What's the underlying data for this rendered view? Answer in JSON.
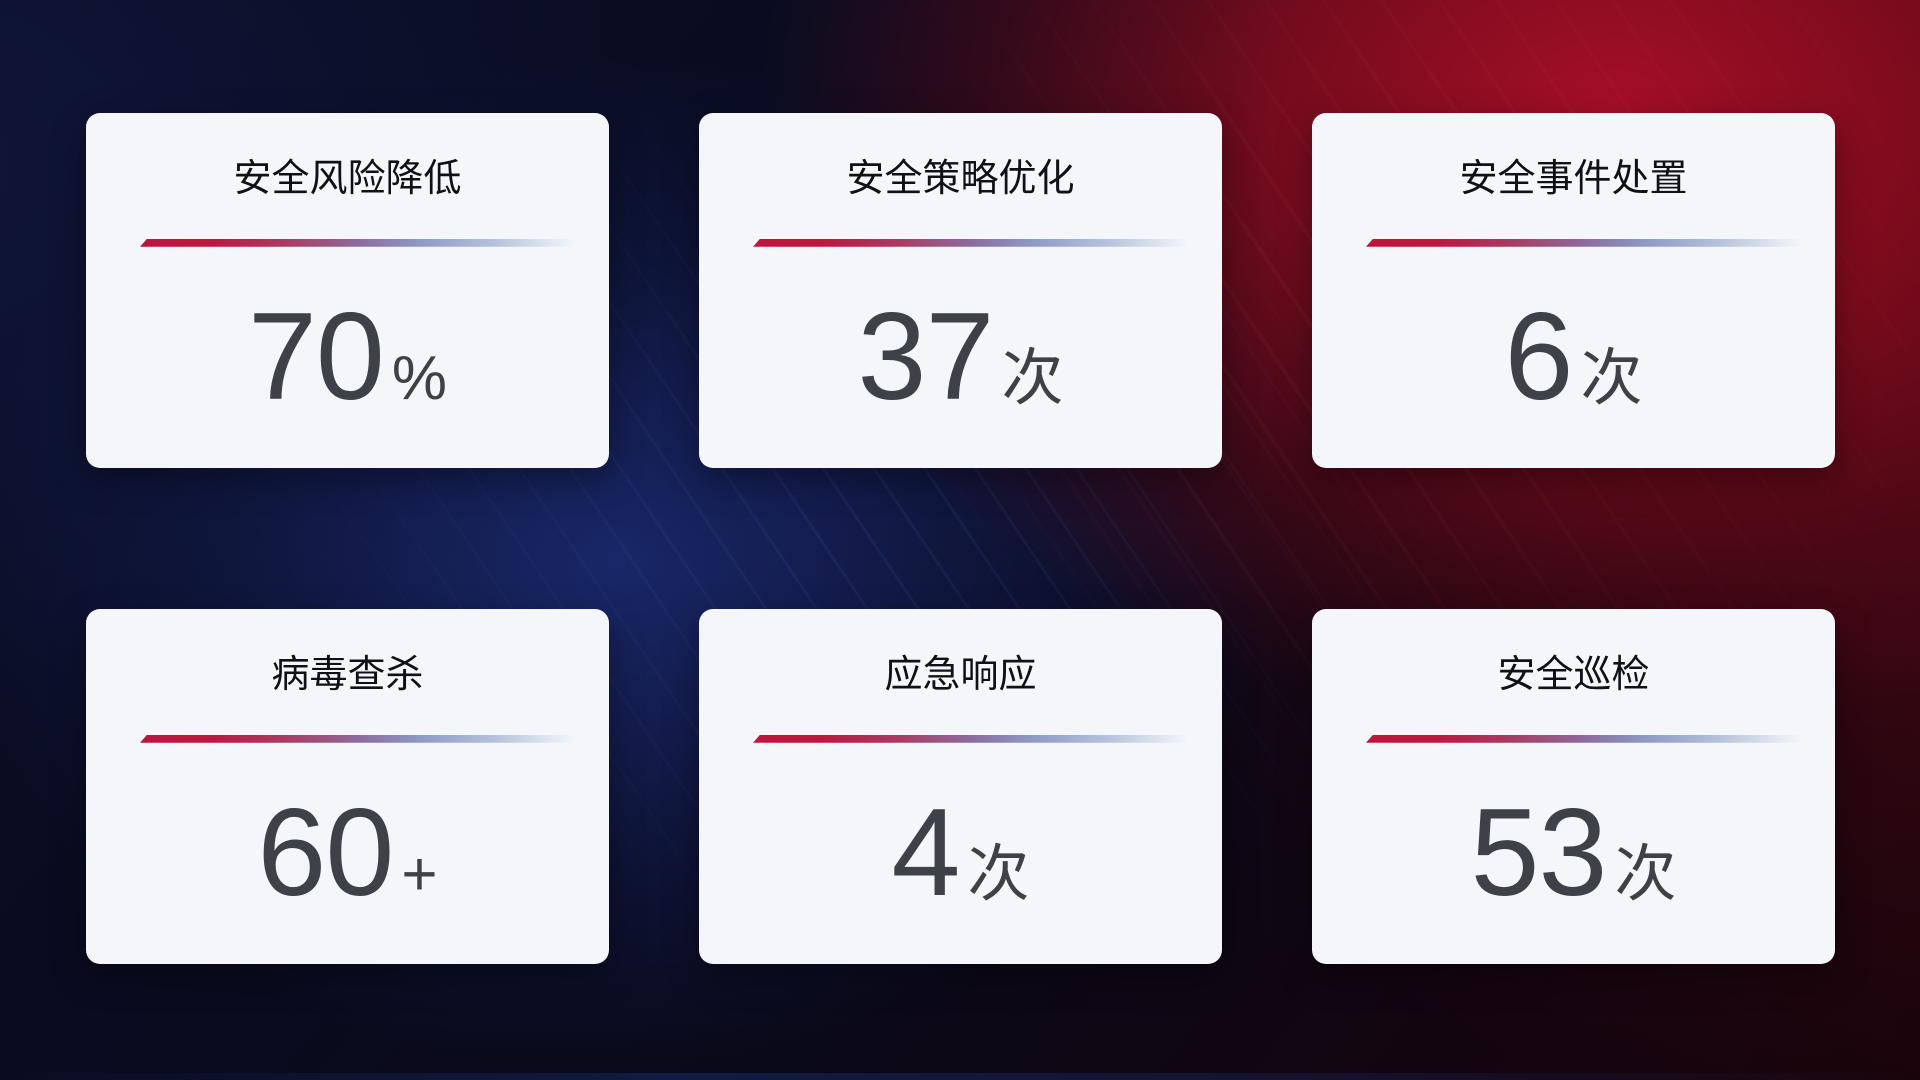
{
  "cards": [
    {
      "title": "安全风险降低",
      "value": "70",
      "unit": "%"
    },
    {
      "title": "安全策略优化",
      "value": "37",
      "unit": "次"
    },
    {
      "title": "安全事件处置",
      "value": "6",
      "unit": "次"
    },
    {
      "title": "病毒查杀",
      "value": "60",
      "unit": "+"
    },
    {
      "title": "应急响应",
      "value": "4",
      "unit": "次"
    },
    {
      "title": "安全巡检",
      "value": "53",
      "unit": "次"
    }
  ],
  "colors": {
    "card_background": "#f4f6fa",
    "title_text": "#101114",
    "value_text": "#3e4147",
    "divider_red": "#c1143c",
    "divider_blue": "#b5c2db",
    "background_navy": "#101a4a",
    "background_red": "#9c0e24"
  }
}
